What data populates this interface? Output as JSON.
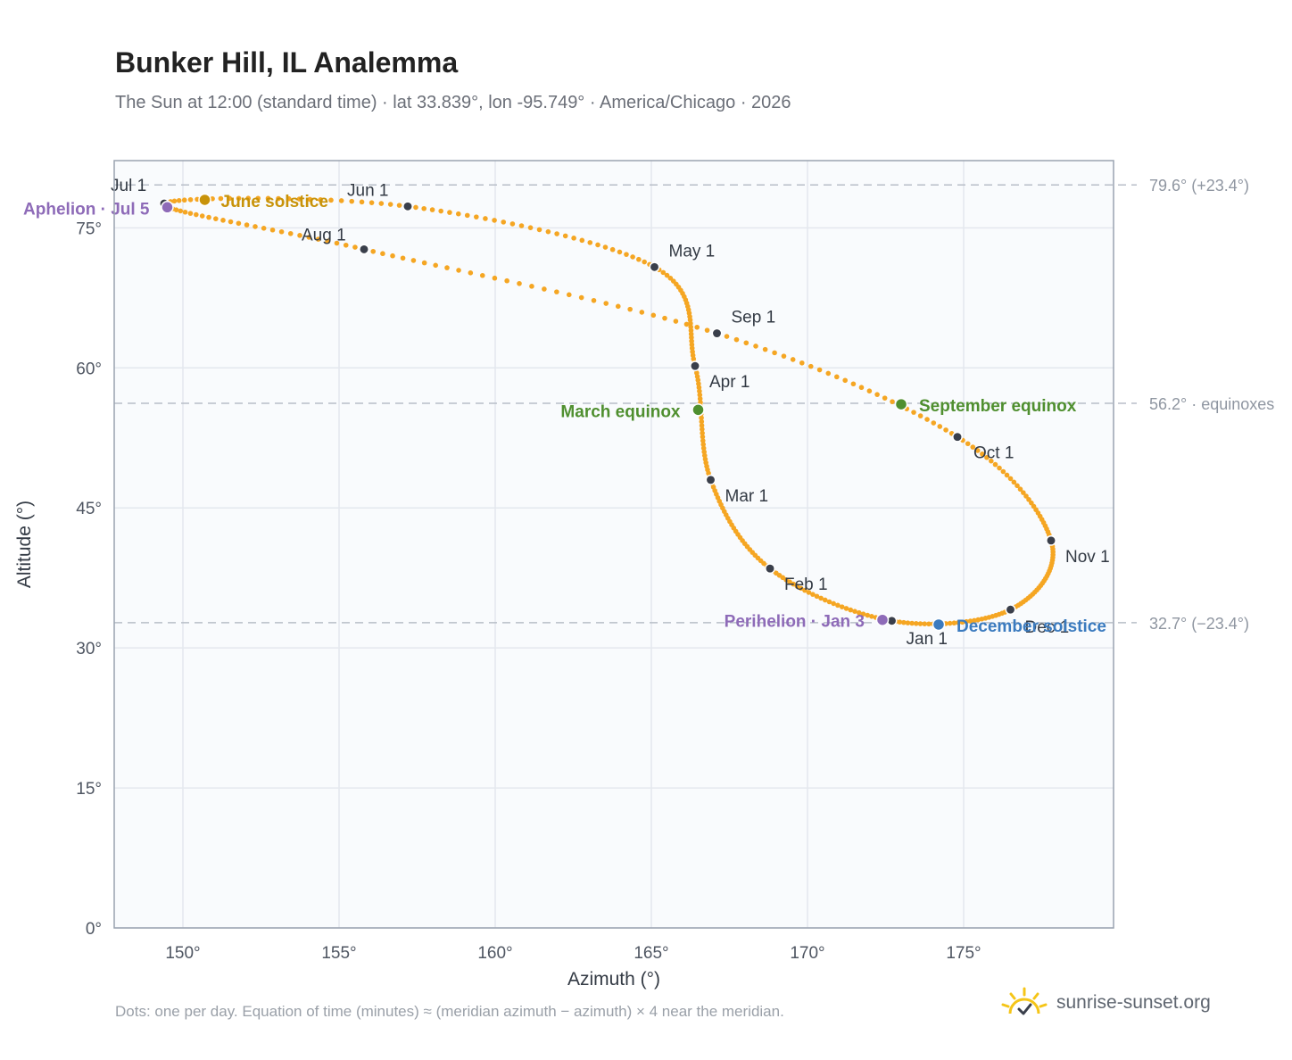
{
  "title": "Bunker Hill, IL Analemma",
  "subtitle": "The Sun at 12:00 (standard time) · lat 33.839°, lon -95.749° · America/Chicago · 2026",
  "footnote": "Dots: one per day. Equation of time (minutes) ≈ (meridian azimuth − azimuth) × 4 near the meridian.",
  "brand": {
    "name": "sunrise-sunset.org",
    "icon": "sun-logo-icon"
  },
  "colors": {
    "path": "#f5a623",
    "month_marker": "#3a3f4b",
    "solstice": "#c8930a",
    "equinox": "#4f8f2f",
    "apsis": "#8e6bb8",
    "december": "#3b7bbf",
    "plot_bg": "#f9fbfd",
    "grid": "#e4e8ee",
    "refline": "#b8bec8"
  },
  "chart_data": {
    "type": "scatter",
    "xlabel": "Azimuth (°)",
    "ylabel": "Altitude (°)",
    "xlim": [
      147.8,
      179.8
    ],
    "ylim": [
      0,
      82.2
    ],
    "xticks": [
      {
        "value": 150,
        "label": "150°"
      },
      {
        "value": 155,
        "label": "155°"
      },
      {
        "value": 160,
        "label": "160°"
      },
      {
        "value": 165,
        "label": "165°"
      },
      {
        "value": 170,
        "label": "170°"
      },
      {
        "value": 175,
        "label": "175°"
      }
    ],
    "yticks": [
      {
        "value": 0,
        "label": "0°"
      },
      {
        "value": 15,
        "label": "15°"
      },
      {
        "value": 30,
        "label": "30°"
      },
      {
        "value": 45,
        "label": "45°"
      },
      {
        "value": 60,
        "label": "60°"
      },
      {
        "value": 75,
        "label": "75°"
      }
    ],
    "grid": true,
    "reference_lines": [
      {
        "y": 79.6,
        "label": "79.6° (+23.4°)"
      },
      {
        "y": 56.2,
        "label": "56.2° · equinoxes"
      },
      {
        "y": 32.7,
        "label": "32.7° (−23.4°)"
      }
    ],
    "month_markers": [
      {
        "label": "Jan 1",
        "x": 172.7,
        "y": 32.9
      },
      {
        "label": "Feb 1",
        "x": 168.8,
        "y": 38.5
      },
      {
        "label": "Mar 1",
        "x": 166.9,
        "y": 48.0
      },
      {
        "label": "Apr 1",
        "x": 166.4,
        "y": 60.2
      },
      {
        "label": "May 1",
        "x": 165.1,
        "y": 70.8
      },
      {
        "label": "Jun 1",
        "x": 157.2,
        "y": 77.3
      },
      {
        "label": "Jul 1",
        "x": 149.4,
        "y": 77.6
      },
      {
        "label": "Aug 1",
        "x": 155.8,
        "y": 72.7
      },
      {
        "label": "Sep 1",
        "x": 167.1,
        "y": 63.7
      },
      {
        "label": "Oct 1",
        "x": 174.8,
        "y": 52.6
      },
      {
        "label": "Nov 1",
        "x": 177.8,
        "y": 41.5
      },
      {
        "label": "Dec 1",
        "x": 176.5,
        "y": 34.1
      }
    ],
    "events": [
      {
        "label": "June solstice",
        "x": 150.7,
        "y": 78.0,
        "color": "solstice"
      },
      {
        "label": "March equinox",
        "x": 166.5,
        "y": 55.5,
        "color": "equinox"
      },
      {
        "label": "September equinox",
        "x": 173.0,
        "y": 56.1,
        "color": "equinox"
      },
      {
        "label": "Aphelion · Jul 5",
        "x": 149.5,
        "y": 77.2,
        "color": "apsis"
      },
      {
        "label": "Perihelion · Jan 3",
        "x": 172.4,
        "y": 33.0,
        "color": "apsis"
      },
      {
        "label": "December solstice",
        "x": 174.2,
        "y": 32.5,
        "color": "december"
      }
    ]
  }
}
